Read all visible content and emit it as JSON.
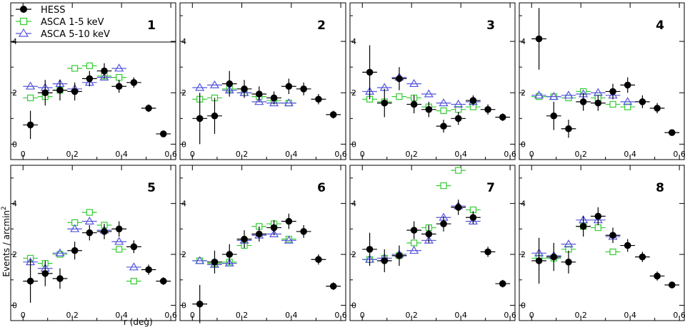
{
  "figure": {
    "xlabel": "r (deg)",
    "ylabel": "Events / arcmin",
    "ylabel_sup": "2"
  },
  "legend": {
    "placement": "top-left of panel 1",
    "entries": [
      {
        "label": "HESS",
        "marker": "filled-circle",
        "color": "#000000"
      },
      {
        "label": "ASCA 1-5 keV",
        "marker": "open-square",
        "color": "#33cc33"
      },
      {
        "label": "ASCA 5-10 keV",
        "marker": "open-triangle",
        "color": "#5555dd"
      }
    ]
  },
  "chart_data": [
    {
      "type": "scatter",
      "title": "1",
      "xlim": [
        -0.05,
        0.62
      ],
      "ylim": [
        -0.6,
        5.5
      ],
      "x_ticks": [
        0,
        0.2,
        0.4,
        0.6
      ],
      "x_tick_labels": [
        "0",
        "0.2",
        "0.4",
        "0.6"
      ],
      "y_ticks": [
        0,
        2,
        4
      ],
      "y_tick_labels": [
        "0",
        "2",
        "4"
      ],
      "series": [
        {
          "name": "HESS",
          "x": [
            0.03,
            0.09,
            0.15,
            0.21,
            0.27,
            0.33,
            0.39,
            0.45,
            0.51,
            0.57
          ],
          "y": [
            0.75,
            2.0,
            2.1,
            2.05,
            2.55,
            2.85,
            2.25,
            2.4,
            1.4,
            0.4
          ],
          "yerr": [
            0.55,
            0.5,
            0.4,
            0.35,
            0.3,
            0.3,
            0.25,
            0.2,
            0.15,
            0.12
          ]
        },
        {
          "name": "ASCA 1-5 keV",
          "x": [
            0.03,
            0.09,
            0.15,
            0.21,
            0.27,
            0.33,
            0.39
          ],
          "y": [
            1.8,
            1.85,
            2.1,
            2.95,
            3.05,
            2.65,
            2.6
          ]
        },
        {
          "name": "ASCA 5-10 keV",
          "x": [
            0.03,
            0.09,
            0.15,
            0.21,
            0.27,
            0.33,
            0.39
          ],
          "y": [
            2.25,
            2.2,
            2.35,
            2.15,
            2.4,
            2.6,
            2.95
          ]
        }
      ]
    },
    {
      "type": "scatter",
      "title": "2",
      "xlim": [
        -0.05,
        0.62
      ],
      "ylim": [
        -0.6,
        5.5
      ],
      "x_ticks": [
        0,
        0.2,
        0.4,
        0.6
      ],
      "x_tick_labels": [
        "0",
        "0.2",
        "0.4",
        "0.6"
      ],
      "y_ticks": [
        0,
        2,
        4
      ],
      "y_tick_labels": [
        "0",
        "2",
        "4"
      ],
      "series": [
        {
          "name": "HESS",
          "x": [
            0.03,
            0.09,
            0.15,
            0.21,
            0.27,
            0.33,
            0.39,
            0.45,
            0.51,
            0.57
          ],
          "y": [
            1.0,
            1.1,
            2.35,
            2.15,
            1.95,
            1.8,
            2.25,
            2.15,
            1.75,
            1.15
          ],
          "yerr": [
            1.0,
            0.7,
            0.5,
            0.35,
            0.3,
            0.25,
            0.3,
            0.25,
            0.2,
            0.15
          ]
        },
        {
          "name": "ASCA 1-5 keV",
          "x": [
            0.03,
            0.09,
            0.15,
            0.21,
            0.27,
            0.33,
            0.39
          ],
          "y": [
            1.75,
            1.8,
            2.15,
            2.0,
            1.85,
            1.7,
            1.6
          ]
        },
        {
          "name": "ASCA 5-10 keV",
          "x": [
            0.03,
            0.09,
            0.15,
            0.21,
            0.27,
            0.33,
            0.39
          ],
          "y": [
            2.2,
            2.3,
            2.1,
            2.0,
            1.65,
            1.6,
            1.6
          ]
        }
      ]
    },
    {
      "type": "scatter",
      "title": "3",
      "xlim": [
        -0.05,
        0.62
      ],
      "ylim": [
        -0.6,
        5.5
      ],
      "x_ticks": [
        0,
        0.2,
        0.4,
        0.6
      ],
      "x_tick_labels": [
        "0",
        "0.2",
        "0.4",
        "0.6"
      ],
      "y_ticks": [
        0,
        2,
        4
      ],
      "y_tick_labels": [
        "0",
        "2",
        "4"
      ],
      "series": [
        {
          "name": "HESS",
          "x": [
            0.03,
            0.09,
            0.15,
            0.21,
            0.27,
            0.33,
            0.39,
            0.45,
            0.51,
            0.57
          ],
          "y": [
            2.8,
            1.6,
            2.55,
            1.55,
            1.35,
            0.7,
            1.0,
            1.7,
            1.35,
            1.05
          ],
          "yerr": [
            1.05,
            0.55,
            0.45,
            0.35,
            0.3,
            0.25,
            0.25,
            0.2,
            0.2,
            0.15
          ]
        },
        {
          "name": "ASCA 1-5 keV",
          "x": [
            0.03,
            0.09,
            0.15,
            0.21,
            0.27,
            0.33,
            0.39,
            0.45
          ],
          "y": [
            1.75,
            1.65,
            1.85,
            1.8,
            1.45,
            1.3,
            1.35,
            1.45
          ]
        },
        {
          "name": "ASCA 5-10 keV",
          "x": [
            0.03,
            0.09,
            0.15,
            0.21,
            0.27,
            0.33,
            0.39,
            0.45
          ],
          "y": [
            2.05,
            2.2,
            2.6,
            2.35,
            1.95,
            1.6,
            1.55,
            1.65
          ]
        }
      ]
    },
    {
      "type": "scatter",
      "title": "4",
      "xlim": [
        -0.05,
        0.62
      ],
      "ylim": [
        -0.6,
        5.5
      ],
      "x_ticks": [
        0,
        0.2,
        0.4,
        0.6
      ],
      "x_tick_labels": [
        "0",
        "0.2",
        "0.4",
        "0.6"
      ],
      "y_ticks": [
        0,
        2,
        4
      ],
      "y_tick_labels": [
        "0",
        "2",
        "4"
      ],
      "series": [
        {
          "name": "HESS",
          "x": [
            0.03,
            0.09,
            0.15,
            0.21,
            0.27,
            0.33,
            0.39,
            0.45,
            0.51,
            0.57
          ],
          "y": [
            4.1,
            1.1,
            0.6,
            1.65,
            1.6,
            2.05,
            2.3,
            1.65,
            1.4,
            0.45
          ],
          "yerr": [
            1.2,
            0.55,
            0.35,
            0.35,
            0.3,
            0.3,
            0.3,
            0.25,
            0.2,
            0.12
          ]
        },
        {
          "name": "ASCA 1-5 keV",
          "x": [
            0.03,
            0.09,
            0.15,
            0.21,
            0.27,
            0.33,
            0.39
          ],
          "y": [
            1.85,
            1.85,
            1.8,
            2.05,
            1.8,
            1.55,
            1.45
          ]
        },
        {
          "name": "ASCA 5-10 keV",
          "x": [
            0.03,
            0.09,
            0.15,
            0.21,
            0.27,
            0.33,
            0.39
          ],
          "y": [
            1.9,
            1.85,
            1.9,
            1.95,
            2.0,
            1.9,
            1.65
          ]
        }
      ]
    },
    {
      "type": "scatter",
      "title": "5",
      "xlim": [
        -0.05,
        0.62
      ],
      "ylim": [
        -0.6,
        5.5
      ],
      "x_ticks": [
        0,
        0.2,
        0.4,
        0.6
      ],
      "x_tick_labels": [
        "0",
        "0.2",
        "0.4",
        "0.6"
      ],
      "y_ticks": [
        0,
        2,
        4
      ],
      "y_tick_labels": [
        "0",
        "2",
        "4"
      ],
      "series": [
        {
          "name": "HESS",
          "x": [
            0.03,
            0.09,
            0.15,
            0.21,
            0.27,
            0.33,
            0.39,
            0.45,
            0.51,
            0.57
          ],
          "y": [
            0.95,
            1.25,
            1.05,
            2.15,
            2.85,
            2.9,
            3.0,
            2.3,
            1.4,
            0.95
          ],
          "yerr": [
            0.85,
            0.5,
            0.4,
            0.35,
            0.3,
            0.3,
            0.3,
            0.25,
            0.2,
            0.15
          ]
        },
        {
          "name": "ASCA 1-5 keV",
          "x": [
            0.03,
            0.09,
            0.15,
            0.21,
            0.27,
            0.33,
            0.39,
            0.45
          ],
          "y": [
            1.85,
            1.65,
            2.0,
            3.25,
            3.65,
            3.15,
            2.2,
            0.95
          ]
        },
        {
          "name": "ASCA 5-10 keV",
          "x": [
            0.03,
            0.09,
            0.15,
            0.21,
            0.27,
            0.33,
            0.39,
            0.45
          ],
          "y": [
            1.7,
            1.45,
            2.05,
            3.0,
            3.3,
            2.95,
            2.5,
            1.5
          ]
        }
      ]
    },
    {
      "type": "scatter",
      "title": "6",
      "xlim": [
        -0.05,
        0.62
      ],
      "ylim": [
        -0.6,
        5.5
      ],
      "x_ticks": [
        0,
        0.2,
        0.4,
        0.6
      ],
      "x_tick_labels": [
        "0",
        "0.2",
        "0.4",
        "0.6"
      ],
      "y_ticks": [
        0,
        2,
        4
      ],
      "y_tick_labels": [
        "0",
        "2",
        "4"
      ],
      "series": [
        {
          "name": "HESS",
          "x": [
            0.03,
            0.09,
            0.15,
            0.21,
            0.27,
            0.33,
            0.39,
            0.45,
            0.51,
            0.57
          ],
          "y": [
            0.05,
            1.7,
            2.0,
            2.6,
            2.8,
            3.05,
            3.3,
            2.9,
            1.8,
            0.75
          ],
          "yerr": [
            0.75,
            0.45,
            0.4,
            0.35,
            0.3,
            0.3,
            0.3,
            0.25,
            0.2,
            0.15
          ]
        },
        {
          "name": "ASCA 1-5 keV",
          "x": [
            0.03,
            0.09,
            0.15,
            0.21,
            0.27,
            0.33,
            0.39
          ],
          "y": [
            1.75,
            1.65,
            1.7,
            2.35,
            3.1,
            3.2,
            2.6
          ]
        },
        {
          "name": "ASCA 5-10 keV",
          "x": [
            0.03,
            0.09,
            0.15,
            0.21,
            0.27,
            0.33,
            0.39
          ],
          "y": [
            1.75,
            1.6,
            1.65,
            2.55,
            2.75,
            2.8,
            2.55
          ]
        }
      ]
    },
    {
      "type": "scatter",
      "title": "7",
      "xlim": [
        -0.05,
        0.62
      ],
      "ylim": [
        -0.6,
        5.5
      ],
      "x_ticks": [
        0,
        0.2,
        0.4,
        0.6
      ],
      "x_tick_labels": [
        "0",
        "0.2",
        "0.4",
        "0.6"
      ],
      "y_ticks": [
        0,
        2,
        4
      ],
      "y_tick_labels": [
        "0",
        "2",
        "4"
      ],
      "series": [
        {
          "name": "HESS",
          "x": [
            0.03,
            0.09,
            0.15,
            0.21,
            0.27,
            0.33,
            0.39,
            0.45,
            0.51,
            0.57
          ],
          "y": [
            2.2,
            1.75,
            1.95,
            2.95,
            2.8,
            3.2,
            3.85,
            3.45,
            2.1,
            0.85
          ],
          "yerr": [
            0.65,
            0.45,
            0.4,
            0.35,
            0.35,
            0.3,
            0.3,
            0.25,
            0.2,
            0.15
          ]
        },
        {
          "name": "ASCA 1-5 keV",
          "x": [
            0.03,
            0.09,
            0.15,
            0.21,
            0.27,
            0.33,
            0.39,
            0.45
          ],
          "y": [
            1.8,
            1.85,
            1.95,
            2.45,
            3.05,
            4.7,
            5.3,
            3.75
          ]
        },
        {
          "name": "ASCA 5-10 keV",
          "x": [
            0.03,
            0.09,
            0.15,
            0.21,
            0.27,
            0.33,
            0.39,
            0.45
          ],
          "y": [
            1.8,
            1.85,
            2.0,
            2.15,
            2.55,
            3.45,
            3.9,
            3.3
          ]
        }
      ]
    },
    {
      "type": "scatter",
      "title": "8",
      "xlim": [
        -0.05,
        0.62
      ],
      "ylim": [
        -0.6,
        5.5
      ],
      "x_ticks": [
        0,
        0.2,
        0.4,
        0.6
      ],
      "x_tick_labels": [
        "0",
        "0.2",
        "0.4",
        "0.6"
      ],
      "y_ticks": [
        0,
        2,
        4
      ],
      "y_tick_labels": [
        "0",
        "2",
        "4"
      ],
      "series": [
        {
          "name": "HESS",
          "x": [
            0.03,
            0.09,
            0.15,
            0.21,
            0.27,
            0.33,
            0.39,
            0.45,
            0.51,
            0.57
          ],
          "y": [
            1.75,
            1.9,
            1.7,
            3.1,
            3.5,
            2.75,
            2.35,
            1.9,
            1.15,
            0.8
          ],
          "yerr": [
            0.9,
            0.55,
            0.45,
            0.4,
            0.35,
            0.3,
            0.25,
            0.2,
            0.18,
            0.12
          ]
        },
        {
          "name": "ASCA 1-5 keV",
          "x": [
            0.03,
            0.09,
            0.15,
            0.21,
            0.27,
            0.33
          ],
          "y": [
            1.85,
            1.85,
            2.2,
            3.1,
            3.05,
            2.1
          ]
        },
        {
          "name": "ASCA 5-10 keV",
          "x": [
            0.03,
            0.09,
            0.15,
            0.21,
            0.27,
            0.33
          ],
          "y": [
            2.05,
            1.95,
            2.4,
            3.35,
            3.35,
            2.7
          ]
        }
      ]
    }
  ]
}
